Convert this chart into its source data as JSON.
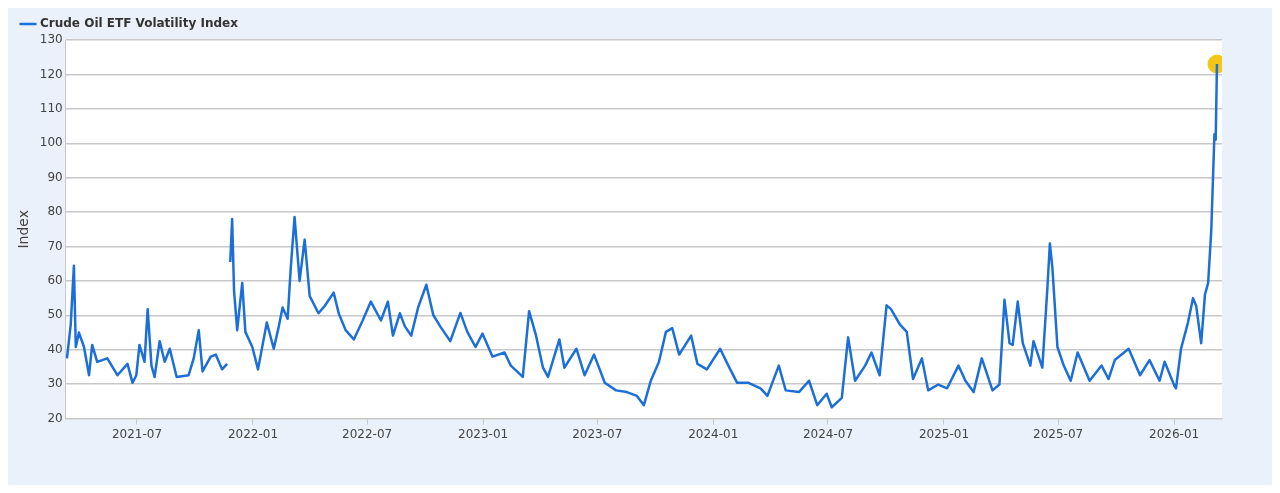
{
  "chart_data": {
    "type": "line",
    "ylabel": "Index",
    "legend": "top left",
    "grid": "y",
    "marker": "none",
    "line_style": "solid",
    "xlim": [
      "2021-03-10",
      "2026-03-18"
    ],
    "xticks": [
      "2021-07",
      "2022-01",
      "2022-07",
      "2023-01",
      "2023-07",
      "2024-01",
      "2024-07",
      "2025-01",
      "2025-07",
      "2026-01"
    ],
    "ylim": [
      20,
      130
    ],
    "yticks": [
      20,
      30,
      40,
      50,
      60,
      70,
      80,
      90,
      100,
      110,
      120,
      130
    ],
    "series": [
      {
        "name": "Crude Oil ETF Volatility Index",
        "color": "#1c6fd8",
        "x": [
          "2021-03-12",
          "2021-03-18",
          "2021-03-23",
          "2021-03-26",
          "2021-03-31",
          "2021-04-08",
          "2021-04-16",
          "2021-04-21",
          "2021-04-29",
          "2021-05-15",
          "2021-05-31",
          "2021-06-16",
          "2021-06-24",
          "2021-06-30",
          "2021-07-05",
          "2021-07-13",
          "2021-07-18",
          "2021-07-24",
          "2021-07-29",
          "2021-08-06",
          "2021-08-14",
          "2021-08-22",
          "2021-09-02",
          "2021-09-21",
          "2021-09-29",
          "2021-10-07",
          "2021-10-13",
          "2021-10-26",
          "2021-11-03",
          "2021-11-13",
          "2021-11-21",
          "2021-11-24",
          "2021-11-26",
          "2021-11-29",
          "2021-12-02",
          "2021-12-07",
          "2021-12-15",
          "2021-12-20",
          "2021-12-31",
          "2022-01-09",
          "2022-01-23",
          "2022-02-03",
          "2022-02-11",
          "2022-02-17",
          "2022-02-25",
          "2022-03-02",
          "2022-03-08",
          "2022-03-16",
          "2022-03-24",
          "2022-04-01",
          "2022-04-15",
          "2022-04-25",
          "2022-05-09",
          "2022-05-17",
          "2022-05-28",
          "2022-06-10",
          "2022-06-24",
          "2022-07-07",
          "2022-07-23",
          "2022-08-03",
          "2022-08-11",
          "2022-08-22",
          "2022-08-30",
          "2022-09-09",
          "2022-09-20",
          "2022-10-03",
          "2022-10-14",
          "2022-10-25",
          "2022-11-10",
          "2022-11-26",
          "2022-12-07",
          "2022-12-20",
          "2022-12-31",
          "2023-01-16",
          "2023-02-04",
          "2023-02-14",
          "2023-03-05",
          "2023-03-15",
          "2023-03-26",
          "2023-04-06",
          "2023-04-14",
          "2023-05-02",
          "2023-05-10",
          "2023-05-29",
          "2023-06-11",
          "2023-06-26",
          "2023-07-13",
          "2023-07-31",
          "2023-08-17",
          "2023-09-02",
          "2023-09-13",
          "2023-09-24",
          "2023-10-07",
          "2023-10-18",
          "2023-10-28",
          "2023-11-08",
          "2023-11-27",
          "2023-12-07",
          "2023-12-22",
          "2024-01-12",
          "2024-01-25",
          "2024-02-08",
          "2024-02-26",
          "2024-03-16",
          "2024-03-27",
          "2024-04-14",
          "2024-04-25",
          "2024-05-16",
          "2024-06-01",
          "2024-06-14",
          "2024-06-29",
          "2024-07-07",
          "2024-07-23",
          "2024-08-02",
          "2024-08-13",
          "2024-08-29",
          "2024-09-08",
          "2024-09-21",
          "2024-10-02",
          "2024-10-09",
          "2024-10-23",
          "2024-11-03",
          "2024-11-13",
          "2024-11-27",
          "2024-12-07",
          "2024-12-23",
          "2025-01-06",
          "2025-01-24",
          "2025-02-04",
          "2025-02-17",
          "2025-03-02",
          "2025-03-19",
          "2025-03-30",
          "2025-04-07",
          "2025-04-15",
          "2025-04-20",
          "2025-04-28",
          "2025-05-06",
          "2025-05-18",
          "2025-05-23",
          "2025-06-06",
          "2025-06-14",
          "2025-06-18",
          "2025-06-22",
          "2025-06-30",
          "2025-07-10",
          "2025-07-21",
          "2025-08-01",
          "2025-08-20",
          "2025-09-08",
          "2025-09-19",
          "2025-09-29",
          "2025-10-21",
          "2025-11-08",
          "2025-11-23",
          "2025-12-09",
          "2025-12-17",
          "2026-01-02",
          "2026-01-04",
          "2026-01-12",
          "2026-01-23",
          "2026-01-31",
          "2026-02-05",
          "2026-02-13",
          "2026-02-19",
          "2026-02-24",
          "2026-03-01",
          "2026-03-06",
          "2026-03-08",
          "2026-03-10"
        ],
        "values": [
          37.5,
          47.4,
          64.4,
          40.8,
          45,
          40.8,
          32.6,
          41.4,
          36.5,
          37.5,
          32.6,
          35.9,
          30.4,
          32.6,
          41.4,
          36.5,
          51.8,
          35.4,
          32.1,
          42.5,
          36.5,
          40.3,
          32.1,
          32.6,
          37.5,
          45.7,
          33.7,
          38,
          38.6,
          34.3,
          35.9,
          null,
          65.5,
          78,
          57.2,
          45.7,
          59.4,
          45.2,
          40.8,
          34.3,
          47.9,
          40.3,
          46.8,
          52.3,
          49,
          63.8,
          78.6,
          60,
          72,
          55.6,
          50.6,
          52.8,
          56.6,
          50.6,
          45.7,
          43,
          48.5,
          54,
          48.5,
          54,
          44.1,
          50.6,
          46.8,
          44.1,
          52.3,
          58.9,
          50.1,
          46.8,
          42.5,
          50.7,
          45.2,
          40.8,
          44.7,
          38,
          39.2,
          35.4,
          32.1,
          51.2,
          44.1,
          34.8,
          32.1,
          43,
          34.8,
          40.3,
          32.6,
          38.6,
          30.4,
          28.2,
          27.7,
          26.6,
          23.9,
          31,
          36.5,
          45.2,
          46.3,
          38.6,
          44.1,
          35.9,
          34.3,
          40.3,
          35.4,
          30.4,
          30.4,
          28.8,
          26.6,
          35.4,
          28.2,
          27.7,
          31,
          23.9,
          27.2,
          23.3,
          26,
          43.6,
          31,
          35.4,
          39.2,
          32.6,
          52.9,
          51.8,
          47.4,
          45.2,
          31.5,
          37.5,
          28.2,
          29.9,
          28.8,
          35.4,
          31,
          27.7,
          37.5,
          28.2,
          29.9,
          54.5,
          41.9,
          41.4,
          54,
          41.9,
          35.4,
          42.5,
          34.8,
          57.8,
          70.9,
          63.8,
          40.8,
          35.4,
          31,
          39.2,
          31,
          35.4,
          31.5,
          37,
          40.3,
          32.6,
          37,
          31,
          36.5,
          29.3,
          28.8,
          40.3,
          47.9,
          55,
          52.8,
          41.9,
          56.1,
          59.4,
          74.7,
          102.6,
          101,
          123
        ]
      },
      {
        "type": "scatter",
        "color": "#f5c518",
        "marker": "circle",
        "x": [
          "2026-03-10"
        ],
        "values": [
          123
        ]
      }
    ]
  }
}
